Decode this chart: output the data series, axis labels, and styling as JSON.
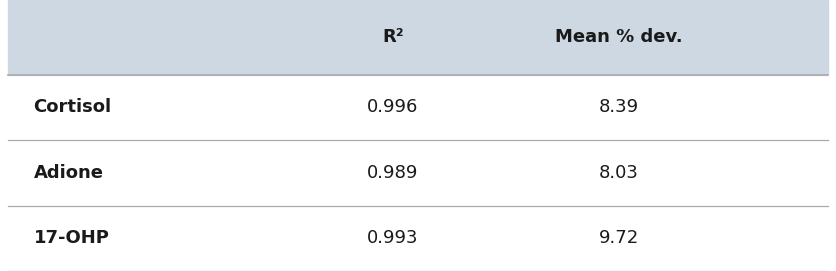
{
  "header_labels": [
    "R²",
    "Mean % dev."
  ],
  "row_labels": [
    "Cortisol",
    "Adione",
    "17-OHP"
  ],
  "col1_values": [
    "0.996",
    "0.989",
    "0.993"
  ],
  "col2_values": [
    "8.39",
    "8.03",
    "9.72"
  ],
  "header_bg_color": "#cdd8e3",
  "row_bg_color": "#ffffff",
  "divider_color": "#aaaaaa",
  "text_color": "#1a1a1a",
  "header_fontsize": 13,
  "cell_fontsize": 13,
  "row_label_fontsize": 13,
  "figsize": [
    8.36,
    2.71
  ],
  "dpi": 100
}
